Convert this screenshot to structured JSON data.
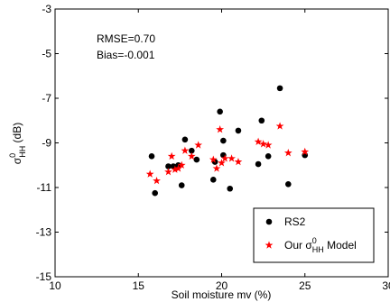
{
  "chart_data": {
    "type": "scatter",
    "title": "",
    "xlabel": "Soil moisture mv (%)",
    "ylabel": {
      "base": "σ",
      "sup": "0",
      "sub": "HH",
      "suffix": " (dB)"
    },
    "xlim": [
      10,
      30
    ],
    "ylim": [
      -15,
      -3
    ],
    "xticks": [
      "10",
      "15",
      "20",
      "25",
      "30"
    ],
    "yticks": [
      "-15",
      "-13",
      "-11",
      "-9",
      "-7",
      "-5",
      "-3"
    ],
    "grid": false,
    "annotations": [
      "RMSE=0.70",
      "Bias=-0.001"
    ],
    "legend": {
      "position": "bottom-right",
      "entries": [
        {
          "series": "RS2",
          "label": "RS2"
        },
        {
          "series": "model",
          "label_parts": {
            "pre": "Our σ",
            "sup": "0",
            "sub": "HH",
            "post": " Model"
          }
        }
      ]
    },
    "series": [
      {
        "name": "RS2",
        "marker": "circle",
        "color": "#000000",
        "points": [
          [
            15.8,
            -9.6
          ],
          [
            16.0,
            -11.25
          ],
          [
            16.8,
            -10.05
          ],
          [
            17.1,
            -10.05
          ],
          [
            17.4,
            -10.0
          ],
          [
            17.6,
            -10.9
          ],
          [
            17.8,
            -8.85
          ],
          [
            18.2,
            -9.35
          ],
          [
            18.5,
            -9.75
          ],
          [
            19.5,
            -10.65
          ],
          [
            19.6,
            -9.85
          ],
          [
            19.9,
            -7.6
          ],
          [
            20.1,
            -9.55
          ],
          [
            20.1,
            -8.9
          ],
          [
            20.5,
            -11.05
          ],
          [
            21.0,
            -8.45
          ],
          [
            22.2,
            -9.95
          ],
          [
            22.4,
            -8.0
          ],
          [
            22.8,
            -9.6
          ],
          [
            23.5,
            -6.55
          ],
          [
            24.0,
            -10.85
          ],
          [
            25.0,
            -9.55
          ]
        ]
      },
      {
        "name": "Our σ0HH Model",
        "marker": "star",
        "color": "#ff0000",
        "points": [
          [
            15.7,
            -10.4
          ],
          [
            16.1,
            -10.7
          ],
          [
            16.8,
            -10.3
          ],
          [
            17.0,
            -9.6
          ],
          [
            17.2,
            -10.2
          ],
          [
            17.4,
            -10.15
          ],
          [
            17.6,
            -10.0
          ],
          [
            17.8,
            -9.35
          ],
          [
            18.2,
            -9.6
          ],
          [
            18.6,
            -9.1
          ],
          [
            19.5,
            -9.75
          ],
          [
            19.7,
            -10.15
          ],
          [
            19.9,
            -8.4
          ],
          [
            20.0,
            -9.9
          ],
          [
            20.2,
            -9.7
          ],
          [
            20.6,
            -9.7
          ],
          [
            21.0,
            -9.85
          ],
          [
            22.2,
            -8.95
          ],
          [
            22.5,
            -9.05
          ],
          [
            22.8,
            -9.1
          ],
          [
            23.5,
            -8.25
          ],
          [
            24.0,
            -9.45
          ],
          [
            25.0,
            -9.4
          ]
        ]
      }
    ]
  }
}
